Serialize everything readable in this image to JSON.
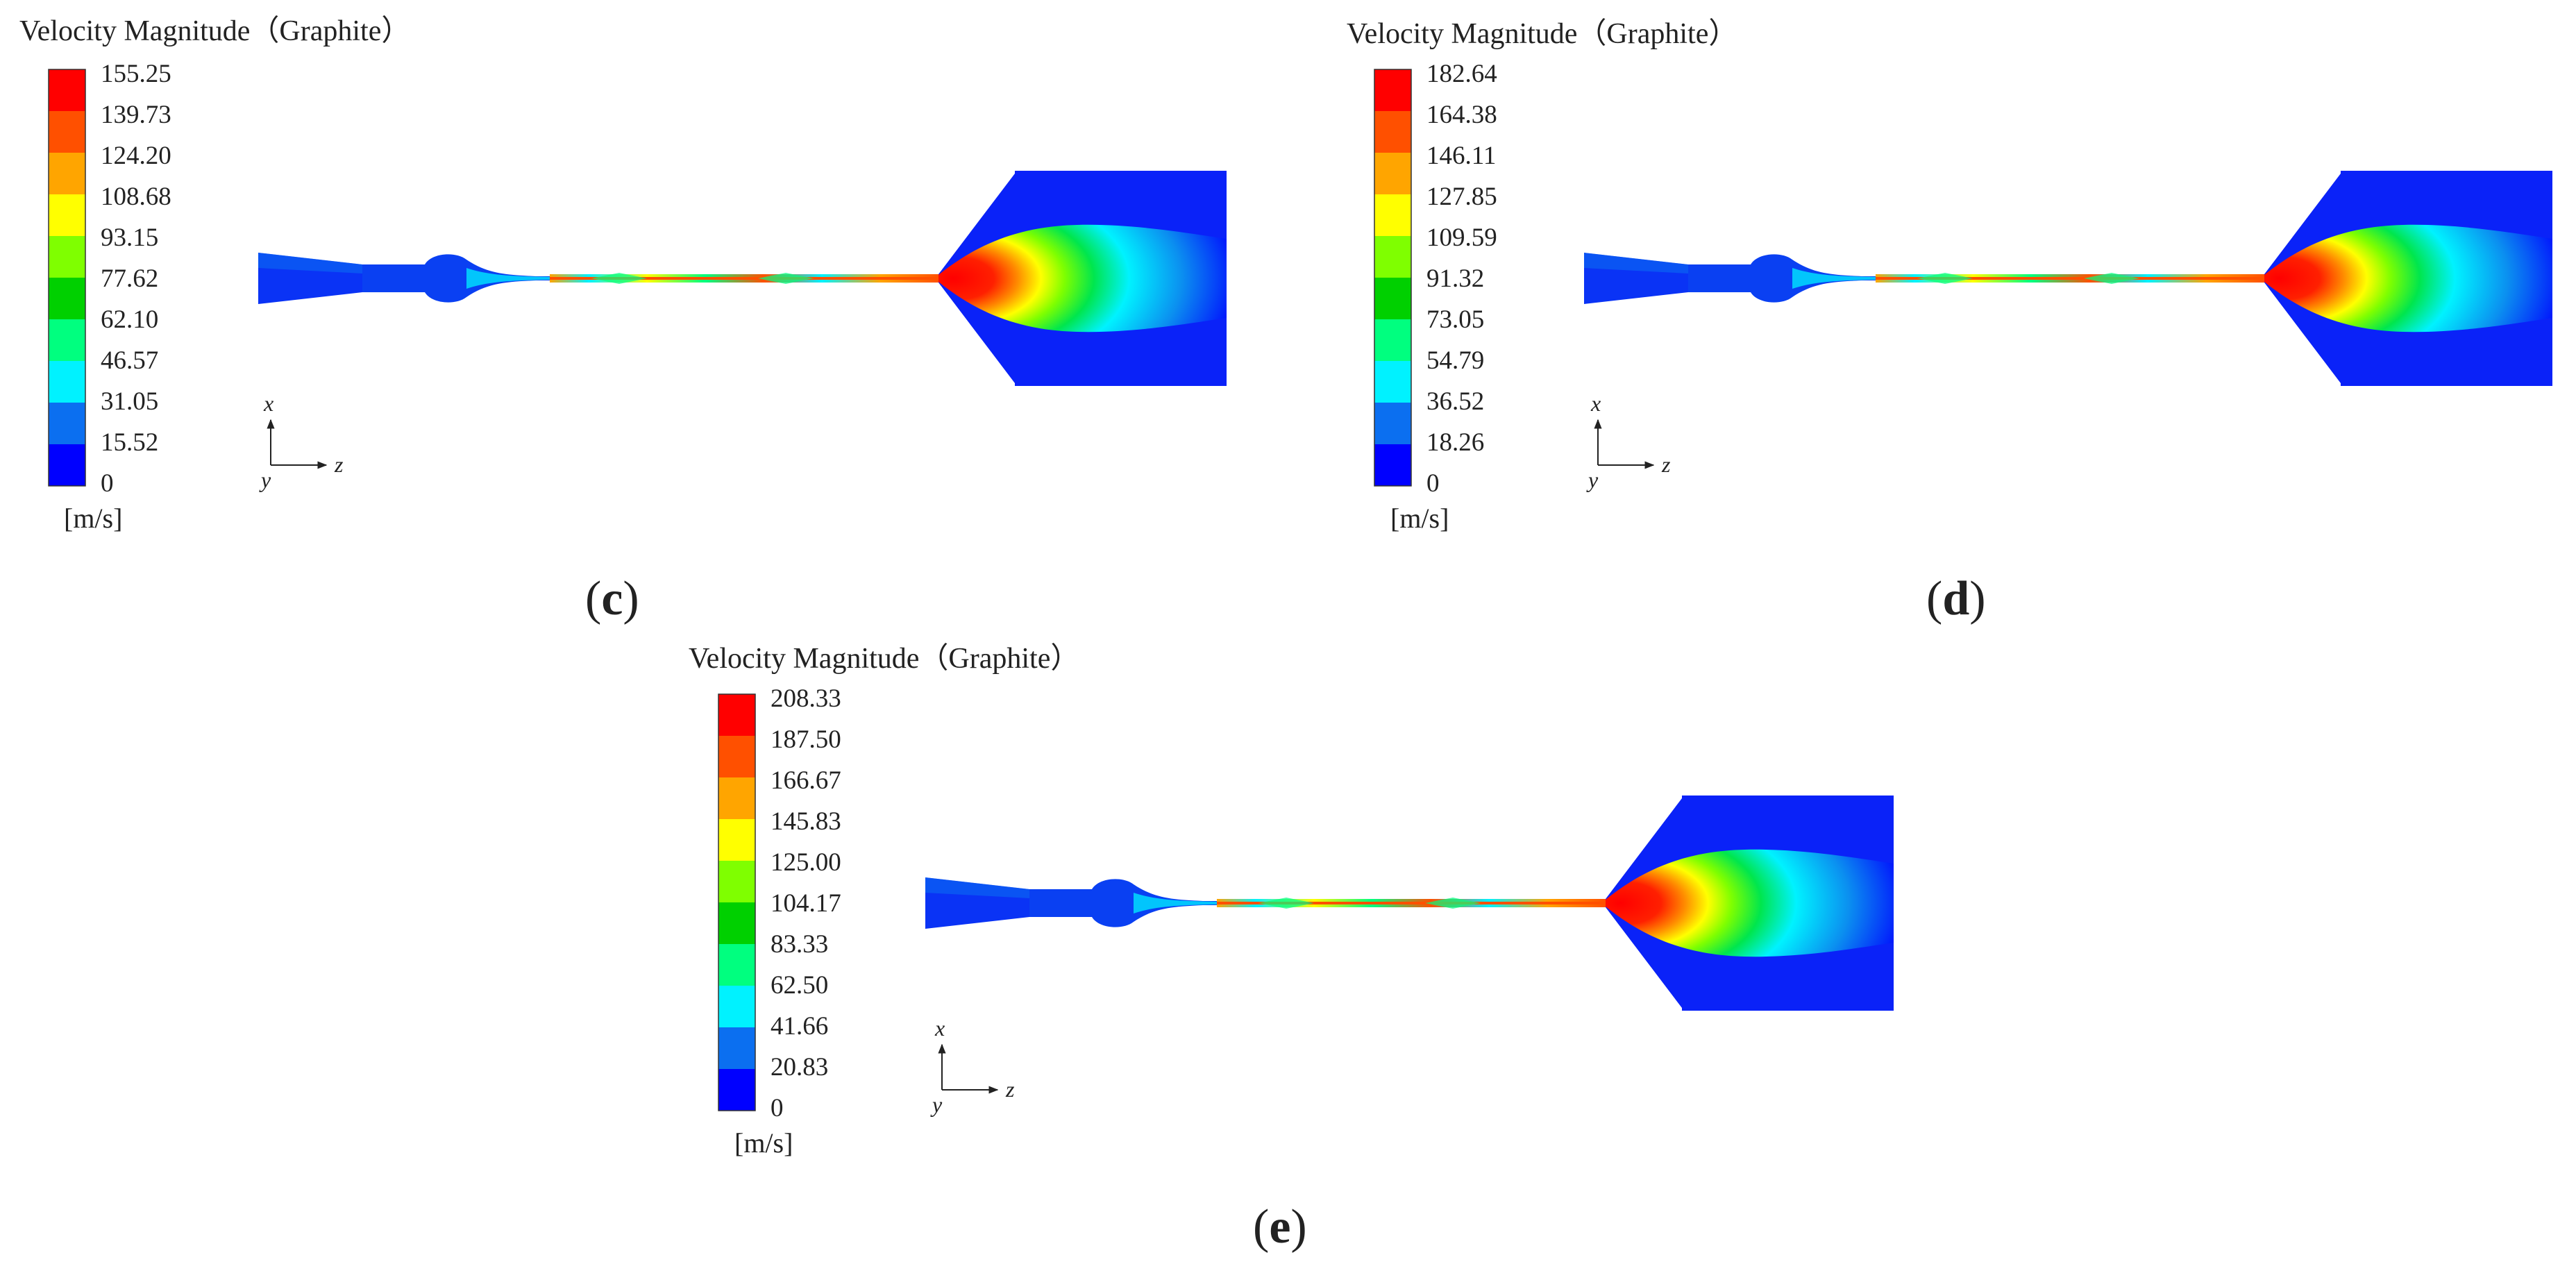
{
  "colors": {
    "scale": [
      "#0000ff",
      "#0b6ff0",
      "#00f2ff",
      "#00ff7f",
      "#00d000",
      "#7fff00",
      "#ffff00",
      "#ffa500",
      "#ff5000",
      "#ff0000"
    ],
    "background": "#ffffff"
  },
  "panels": [
    {
      "id": "c",
      "title": "Velocity Magnitude（Graphite）",
      "unit": "[m/s]",
      "ticks": [
        "0",
        "15.52",
        "31.05",
        "46.57",
        "62.10",
        "77.62",
        "93.15",
        "108.68",
        "124.20",
        "139.73",
        "155.25"
      ],
      "label_open": "(",
      "label_letter": "c",
      "label_close": ")",
      "axes": {
        "vertical": "x",
        "horizontal": "z",
        "out_of_plane": "y"
      }
    },
    {
      "id": "d",
      "title": "Velocity Magnitude（Graphite）",
      "unit": "[m/s]",
      "ticks": [
        "0",
        "18.26",
        "36.52",
        "54.79",
        "73.05",
        "91.32",
        "109.59",
        "127.85",
        "146.11",
        "164.38",
        "182.64"
      ],
      "label_open": "(",
      "label_letter": "d",
      "label_close": ")",
      "axes": {
        "vertical": "x",
        "horizontal": "z",
        "out_of_plane": "y"
      }
    },
    {
      "id": "e",
      "title": "Velocity Magnitude（Graphite）",
      "unit": "[m/s]",
      "ticks": [
        "0",
        "20.83",
        "41.66",
        "62.50",
        "83.33",
        "104.17",
        "125.00",
        "145.83",
        "166.67",
        "187.50",
        "208.33"
      ],
      "label_open": "(",
      "label_letter": "e",
      "label_close": ")",
      "axes": {
        "vertical": "x",
        "horizontal": "z",
        "out_of_plane": "y"
      }
    }
  ]
}
